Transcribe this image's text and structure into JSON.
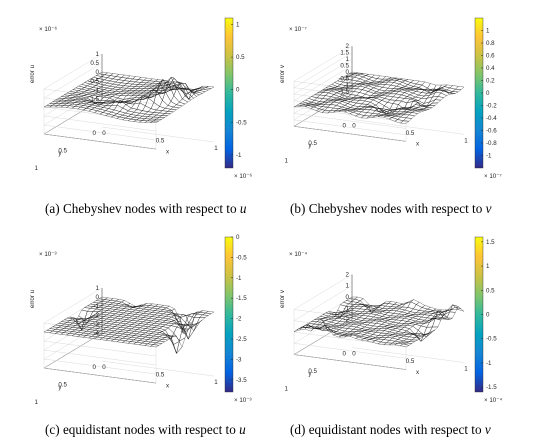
{
  "chart_data": [
    {
      "type": "surface",
      "caption_label": "(a)",
      "caption_text": "Chebyshev nodes with respect to",
      "caption_var": "u",
      "zlabel": "error u",
      "xlabel": "x",
      "ylabel": "y",
      "z_exponent": "× 10⁻⁶",
      "colorbar_exponent": "× 10⁻⁶",
      "zticks": [
        "1",
        "0.5",
        "0",
        "-0.5",
        "-1",
        "-1.5"
      ],
      "zlim": [
        -1.5,
        1
      ],
      "xticks": [
        "0",
        "0.5",
        "1"
      ],
      "yticks": [
        "1",
        "0.5",
        "0"
      ],
      "colorbar_ticks": [
        "1",
        "0.5",
        "0",
        "-0.5",
        "-1"
      ],
      "colorbar_range": [
        -1.2,
        1.1
      ],
      "features": [
        {
          "x": 0.82,
          "y": 0.5,
          "z": 1.0
        },
        {
          "x": 0.86,
          "y": 0.42,
          "z": 0.95
        },
        {
          "x": 0.78,
          "y": 0.58,
          "z": 0.8
        },
        {
          "x": 0.88,
          "y": 0.32,
          "z": 0.7
        },
        {
          "x": 0.7,
          "y": 0.65,
          "z": 0.5
        },
        {
          "x": 0.55,
          "y": 0.75,
          "z": 0.35
        },
        {
          "x": 0.3,
          "y": 0.65,
          "z": -0.3
        },
        {
          "x": 0.45,
          "y": 0.55,
          "z": -0.25
        },
        {
          "x": 0.8,
          "y": 0.05,
          "z": -0.8
        }
      ]
    },
    {
      "type": "surface",
      "caption_label": "(b)",
      "caption_text": "Chebyshev nodes with respect to",
      "caption_var": "v",
      "zlabel": "error v",
      "xlabel": "x",
      "ylabel": "y",
      "z_exponent": "× 10⁻⁷",
      "colorbar_exponent": "× 10⁻⁷",
      "zticks": [
        "2",
        "1.5",
        "1",
        "0.5",
        "0",
        "-0.5",
        "-1",
        "-1.5"
      ],
      "zlim": [
        -1.5,
        2
      ],
      "xticks": [
        "0",
        "0.5",
        "1"
      ],
      "yticks": [
        "1",
        "0.5",
        "0"
      ],
      "colorbar_ticks": [
        "1",
        "0.8",
        "0.6",
        "0.4",
        "0.2",
        "0",
        "-0.2",
        "-0.4",
        "-0.6",
        "-0.8",
        "-1"
      ],
      "colorbar_range": [
        -1.2,
        1.2
      ],
      "features": [
        {
          "x": 0.78,
          "y": 0.55,
          "z": -1.0
        },
        {
          "x": 0.7,
          "y": 0.62,
          "z": -0.9
        },
        {
          "x": 0.86,
          "y": 0.45,
          "z": -0.7
        },
        {
          "x": 0.62,
          "y": 0.68,
          "z": -0.6
        },
        {
          "x": 0.82,
          "y": 0.5,
          "z": 0.6
        },
        {
          "x": 0.72,
          "y": 0.6,
          "z": 0.5
        },
        {
          "x": 0.4,
          "y": 0.5,
          "z": -0.3
        },
        {
          "x": 0.75,
          "y": 0.08,
          "z": -0.7
        },
        {
          "x": 0.92,
          "y": 0.25,
          "z": 0.4
        }
      ]
    },
    {
      "type": "surface",
      "caption_label": "(c)",
      "caption_text": "equidistant nodes with respect to",
      "caption_var": "u",
      "zlabel": "error u",
      "xlabel": "x",
      "ylabel": "y",
      "z_exponent": "× 10⁻³",
      "colorbar_exponent": "× 10⁻³",
      "zticks": [
        "1",
        "0",
        "-1",
        "-2",
        "-3",
        "-4"
      ],
      "zlim": [
        -4,
        1
      ],
      "xticks": [
        "0",
        "0.5",
        "1"
      ],
      "yticks": [
        "1",
        "0.5",
        "0"
      ],
      "colorbar_ticks": [
        "0",
        "-0.5",
        "-1",
        "-1.5",
        "-2",
        "-2.5",
        "-3",
        "-3.5"
      ],
      "colorbar_range": [
        -3.8,
        0
      ],
      "features": [
        {
          "x": 0.05,
          "y": 0.45,
          "z": -1.8
        },
        {
          "x": 0.75,
          "y": 0.02,
          "z": -3.2
        },
        {
          "x": 0.9,
          "y": 0.25,
          "z": -2.2
        },
        {
          "x": 0.96,
          "y": 0.55,
          "z": -2.6
        },
        {
          "x": 0.3,
          "y": 0.02,
          "z": -0.6
        }
      ]
    },
    {
      "type": "surface",
      "caption_label": "(d)",
      "caption_text": "equidistant nodes with respect to",
      "caption_var": "v",
      "zlabel": "error v",
      "xlabel": "x",
      "ylabel": "y",
      "z_exponent": "× 10⁻⁴",
      "colorbar_exponent": "× 10⁻⁴",
      "zticks": [
        "2",
        "1",
        "0",
        "-1",
        "-2"
      ],
      "zlim": [
        -2,
        2
      ],
      "xticks": [
        "0",
        "0.5",
        "1"
      ],
      "yticks": [
        "1",
        "0.5",
        "0"
      ],
      "colorbar_ticks": [
        "1.5",
        "1",
        "0.5",
        "0",
        "-0.5",
        "-1",
        "-1.5"
      ],
      "colorbar_range": [
        -1.6,
        1.6
      ],
      "features": [
        {
          "x": 0.25,
          "y": 1.0,
          "z": 1.5
        },
        {
          "x": 0.1,
          "y": 0.95,
          "z": 0.6
        },
        {
          "x": 0.2,
          "y": 0.03,
          "z": -1.0
        },
        {
          "x": 0.03,
          "y": 0.3,
          "z": -1.0
        },
        {
          "x": 0.97,
          "y": 0.35,
          "z": 1.2
        },
        {
          "x": 0.9,
          "y": 0.55,
          "z": -1.0
        },
        {
          "x": 0.97,
          "y": 0.1,
          "z": 1.0
        },
        {
          "x": 0.55,
          "y": 0.02,
          "z": 0.6
        },
        {
          "x": 0.5,
          "y": 0.98,
          "z": 0.4
        }
      ]
    }
  ]
}
